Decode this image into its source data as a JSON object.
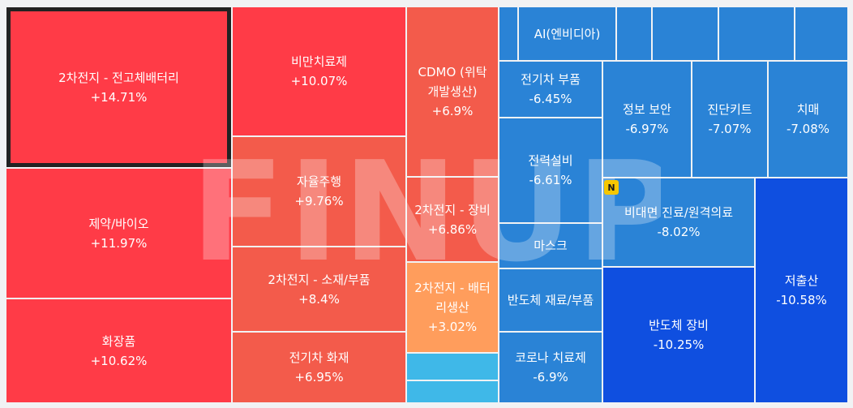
{
  "watermark": "FINUP",
  "badge": "N",
  "chart_data": {
    "type": "treemap",
    "items": [
      {
        "label": "2차전지 - 전고체배터리",
        "value": "+14.71%",
        "change": 14.71,
        "color": "#ff3b47",
        "selected": true
      },
      {
        "label": "제약/바이오",
        "value": "+11.97%",
        "change": 11.97,
        "color": "#ff3b47"
      },
      {
        "label": "화장품",
        "value": "+10.62%",
        "change": 10.62,
        "color": "#ff3b47"
      },
      {
        "label": "비만치료제",
        "value": "+10.07%",
        "change": 10.07,
        "color": "#ff3b47"
      },
      {
        "label": "자율주행",
        "value": "+9.76%",
        "change": 9.76,
        "color": "#f35b4b"
      },
      {
        "label": "2차전지 - 소재/부품",
        "value": "+8.4%",
        "change": 8.4,
        "color": "#f35b4b"
      },
      {
        "label": "전기차 화재",
        "value": "+6.95%",
        "change": 6.95,
        "color": "#f35b4b"
      },
      {
        "label": "CDMO (위탁 개발생산)",
        "value": "+6.9%",
        "change": 6.9,
        "color": "#f35b4b"
      },
      {
        "label": "2차전지 - 장비",
        "value": "+6.86%",
        "change": 6.86,
        "color": "#f35b4b"
      },
      {
        "label": "2차전지 - 배터리생산",
        "value": "+3.02%",
        "change": 3.02,
        "color": "#ff9d5c"
      },
      {
        "label": "",
        "value": "",
        "color": "#3fb8e8"
      },
      {
        "label": "",
        "value": "",
        "color": "#3fb8e8"
      },
      {
        "label": "",
        "value": "",
        "color": "#2a83d6"
      },
      {
        "label": "AI(엔비디아)",
        "value": "",
        "color": "#2a83d6"
      },
      {
        "label": "",
        "value": "",
        "color": "#2a83d6"
      },
      {
        "label": "",
        "value": "",
        "color": "#2a83d6"
      },
      {
        "label": "",
        "value": "",
        "color": "#2a83d6"
      },
      {
        "label": "",
        "value": "",
        "color": "#2a83d6"
      },
      {
        "label": "",
        "value": "",
        "color": "#2a83d6"
      },
      {
        "label": "전기차 부품",
        "value": "-6.45%",
        "change": -6.45,
        "color": "#2a83d6"
      },
      {
        "label": "전력설비",
        "value": "-6.61%",
        "change": -6.61,
        "color": "#2a83d6"
      },
      {
        "label": "마스크",
        "value": "",
        "color": "#2a83d6"
      },
      {
        "label": "반도체 재료/부품",
        "value": "",
        "color": "#2a83d6"
      },
      {
        "label": "코로나 치료제",
        "value": "-6.9%",
        "change": -6.9,
        "color": "#2a83d6"
      },
      {
        "label": "정보 보안",
        "value": "-6.97%",
        "change": -6.97,
        "color": "#2a83d6"
      },
      {
        "label": "진단키트",
        "value": "-7.07%",
        "change": -7.07,
        "color": "#2a83d6"
      },
      {
        "label": "치매",
        "value": "-7.08%",
        "change": -7.08,
        "color": "#2a83d6"
      },
      {
        "label": "비대면 진료/원격의료",
        "value": "-8.02%",
        "change": -8.02,
        "color": "#2a83d6"
      },
      {
        "label": "반도체 장비",
        "value": "-10.25%",
        "change": -10.25,
        "color": "#0f4fe0"
      },
      {
        "label": "저출산",
        "value": "-10.58%",
        "change": -10.58,
        "color": "#0f4fe0"
      }
    ]
  }
}
